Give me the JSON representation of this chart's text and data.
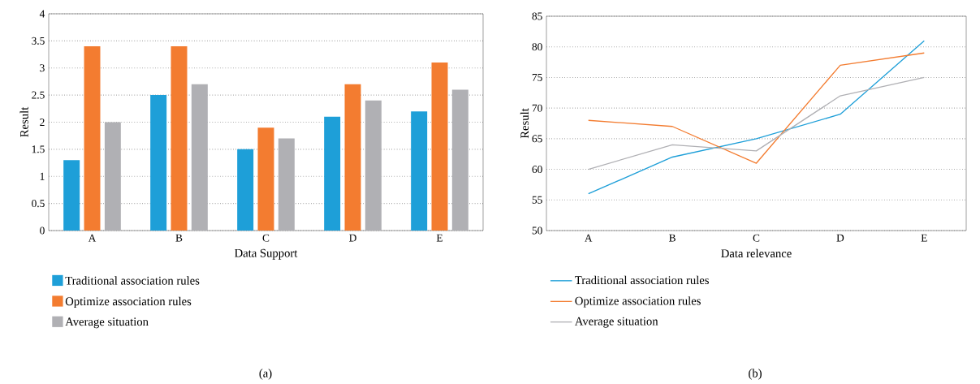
{
  "chart_data": [
    {
      "type": "bar",
      "xlabel": "Data Support",
      "ylabel": "Result",
      "categories": [
        "A",
        "B",
        "C",
        "D",
        "E"
      ],
      "series": [
        {
          "name": "Traditional association rules",
          "color": "#1e9fd8",
          "values": [
            1.3,
            2.5,
            1.5,
            2.1,
            2.2
          ]
        },
        {
          "name": "Optimize association rules",
          "color": "#f37c30",
          "values": [
            3.4,
            3.4,
            1.9,
            2.7,
            3.1
          ]
        },
        {
          "name": "Average situation",
          "color": "#b0b0b4",
          "values": [
            2.0,
            2.7,
            1.7,
            2.4,
            2.6
          ]
        }
      ],
      "ylim": [
        0,
        4
      ],
      "yticks": [
        0,
        0.5,
        1,
        1.5,
        2,
        2.5,
        3,
        3.5,
        4
      ],
      "grid": "y",
      "legend": "bottom left",
      "annotations": [
        "(a)"
      ]
    },
    {
      "type": "line",
      "xlabel": "Data relevance",
      "ylabel": "Result",
      "categories": [
        "A",
        "B",
        "C",
        "D",
        "E"
      ],
      "series": [
        {
          "name": "Traditional association rules",
          "color": "#1e9fd8",
          "values": [
            56,
            62,
            65,
            69,
            81
          ]
        },
        {
          "name": "Optimize association rules",
          "color": "#f37c30",
          "values": [
            68,
            67,
            61,
            77,
            79
          ]
        },
        {
          "name": "Average situation",
          "color": "#b0b0b4",
          "values": [
            60,
            64,
            63,
            72,
            75
          ]
        }
      ],
      "ylim": [
        50,
        85
      ],
      "yticks": [
        50,
        55,
        60,
        65,
        70,
        75,
        80,
        85
      ],
      "grid": "y",
      "legend": "bottom left",
      "marker": "none",
      "line_style": "solid",
      "annotations": [
        "(b)"
      ]
    }
  ]
}
